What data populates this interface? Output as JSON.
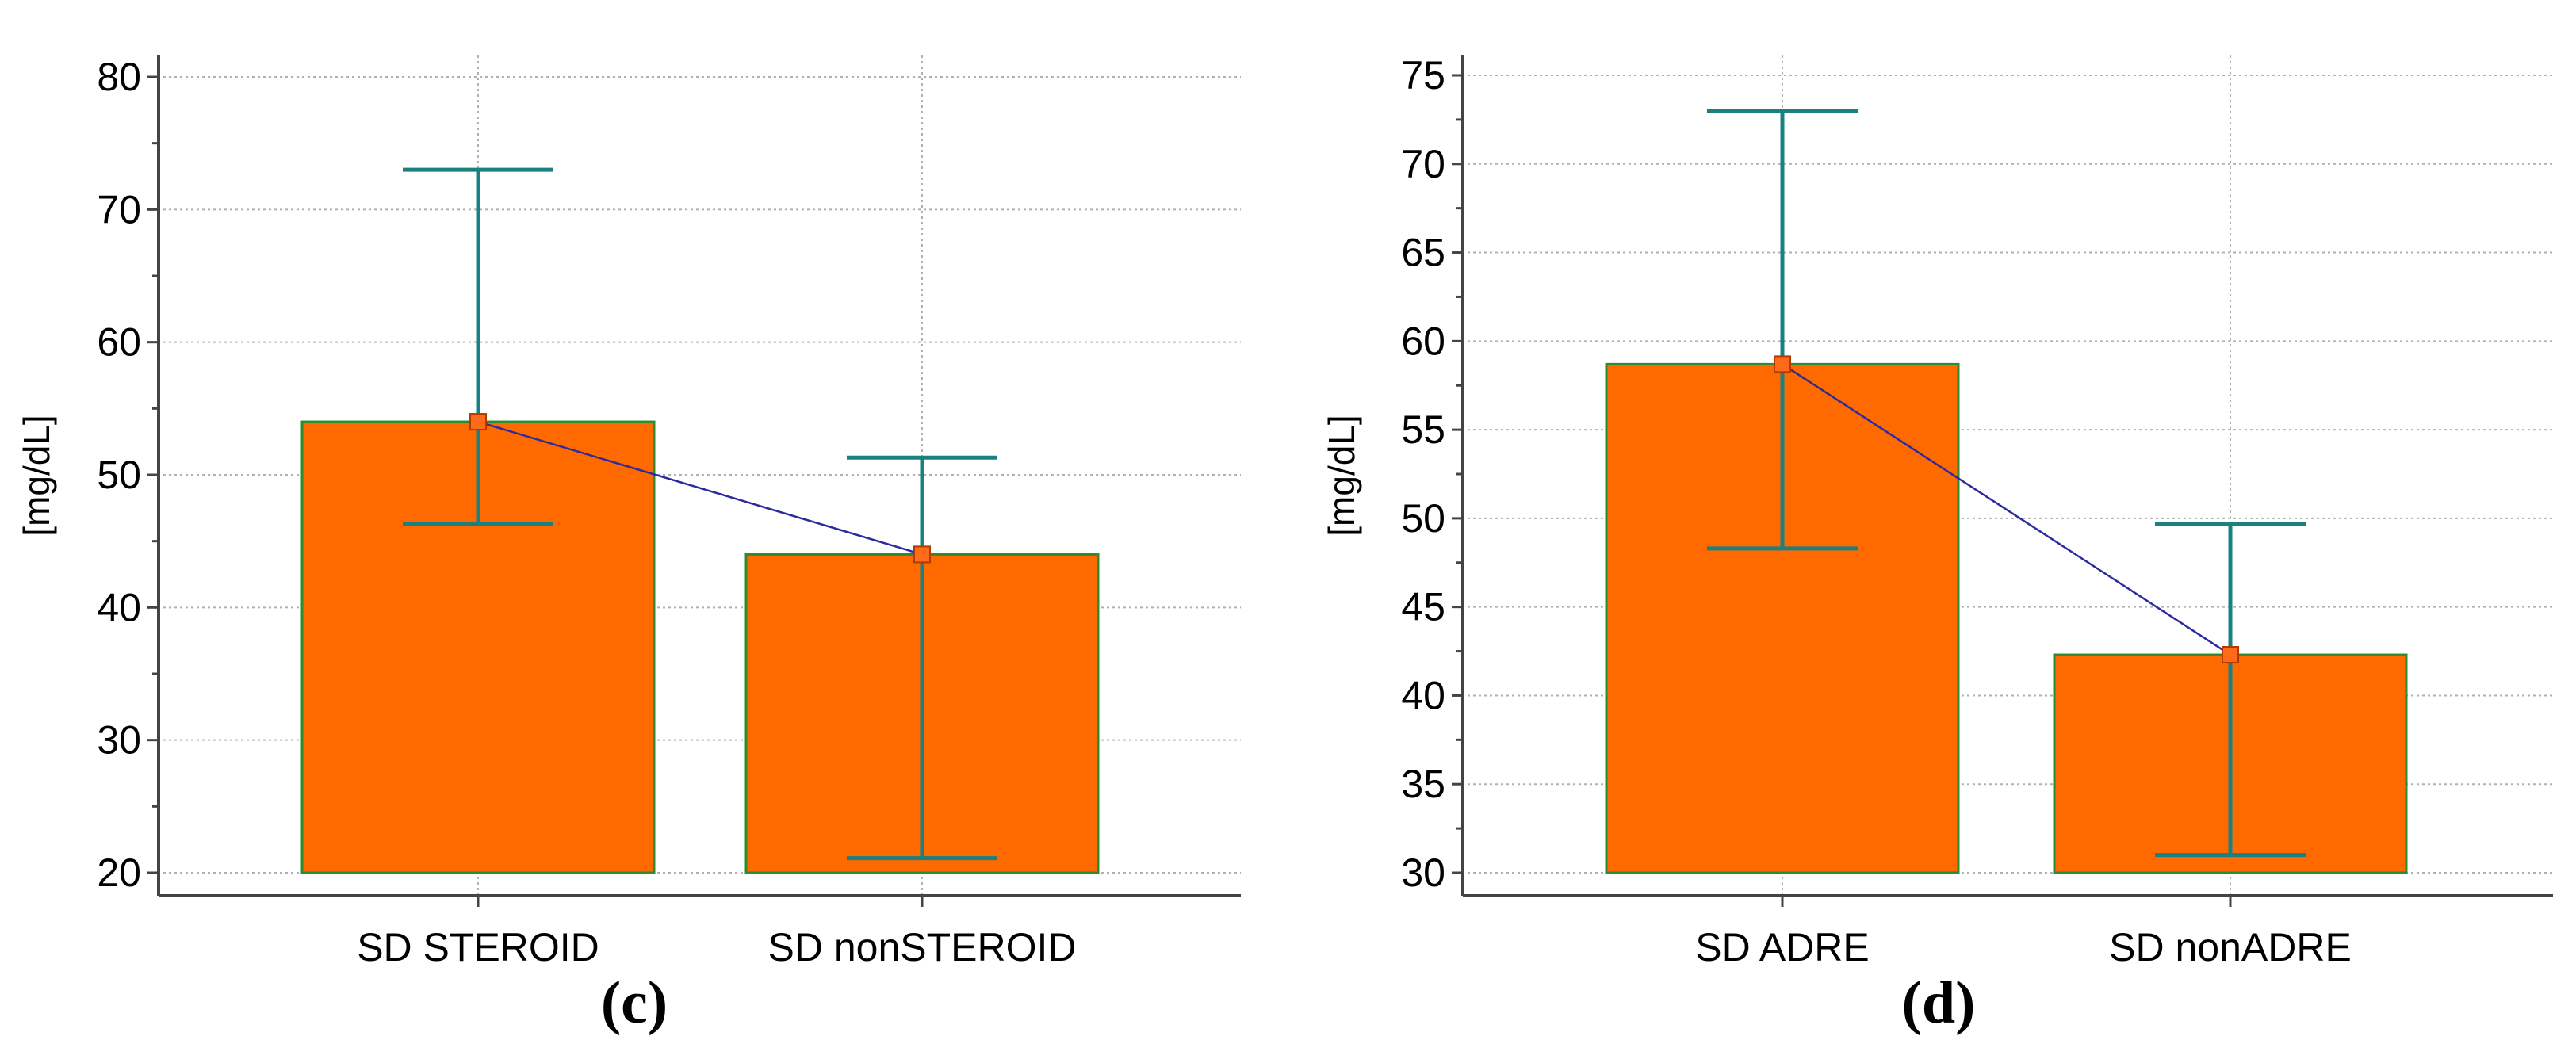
{
  "chart_data": [
    {
      "type": "bar",
      "panel_label": "(c)",
      "ylabel": "[mg/dL]",
      "ylim": [
        20,
        80
      ],
      "y_ticks": [
        20,
        30,
        40,
        50,
        60,
        70,
        80
      ],
      "y_minor_ticks": [
        25,
        35,
        45,
        55,
        65,
        75
      ],
      "categories": [
        "SD STEROID",
        "SD nonSTEROID"
      ],
      "values": [
        54.0,
        44.0
      ],
      "error_upper": [
        73.0,
        51.3
      ],
      "error_lower": [
        46.3,
        21.1
      ],
      "grid": true,
      "bar_color": "#ff6a00",
      "bar_edge_color": "#2e8b2e",
      "error_color": "#1a8080",
      "line_color": "#2b2b9e"
    },
    {
      "type": "bar",
      "panel_label": "(d)",
      "ylabel": "[mg/dL]",
      "ylim": [
        30,
        75
      ],
      "y_ticks": [
        30,
        35,
        40,
        45,
        50,
        55,
        60,
        65,
        70,
        75
      ],
      "y_minor_ticks": [
        32.5,
        37.5,
        42.5,
        47.5,
        52.5,
        57.5,
        62.5,
        67.5,
        72.5
      ],
      "categories": [
        "SD ADRE",
        "SD nonADRE"
      ],
      "values": [
        58.7,
        42.3
      ],
      "error_upper": [
        73.0,
        49.7
      ],
      "error_lower": [
        48.3,
        31.0
      ],
      "grid": true,
      "bar_color": "#ff6a00",
      "bar_edge_color": "#2e8b2e",
      "error_color": "#1a8080",
      "line_color": "#2b2b9e"
    }
  ]
}
